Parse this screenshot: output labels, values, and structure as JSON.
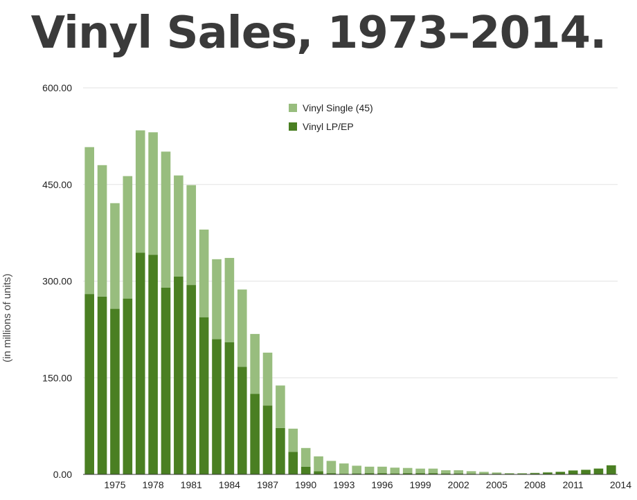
{
  "title": "Vinyl Sales, 1973–2014.",
  "chart_data": {
    "type": "bar",
    "stacked": true,
    "title": "Vinyl Sales, 1973–2014.",
    "xlabel": "",
    "ylabel": "(in millions of units)",
    "ylim": [
      0,
      600
    ],
    "yticks": [
      "0.00",
      "150.00",
      "300.00",
      "450.00",
      "600.00"
    ],
    "x": [
      1973,
      1974,
      1975,
      1976,
      1977,
      1978,
      1979,
      1980,
      1981,
      1982,
      1983,
      1984,
      1985,
      1986,
      1987,
      1988,
      1989,
      1990,
      1991,
      1992,
      1993,
      1994,
      1995,
      1996,
      1997,
      1998,
      1999,
      2000,
      2001,
      2002,
      2003,
      2004,
      2005,
      2006,
      2007,
      2008,
      2009,
      2010,
      2011,
      2012,
      2013,
      2014
    ],
    "x_tick_labels": [
      "1975",
      "1978",
      "1981",
      "1984",
      "1987",
      "1990",
      "1993",
      "1996",
      "1999",
      "2002",
      "2005",
      "2008",
      "2011",
      "2014"
    ],
    "grid": true,
    "legend_position": "top-center",
    "series": [
      {
        "name": "Vinyl LP/EP",
        "color": "#4a7f22",
        "values": [
          280,
          276,
          257,
          273,
          344,
          341,
          290,
          307,
          294,
          244,
          210,
          205,
          167,
          125,
          107,
          72,
          35,
          12,
          5,
          2,
          1,
          1.5,
          2,
          2,
          1.5,
          2,
          2,
          2,
          1.5,
          1.5,
          1,
          1,
          1,
          1,
          1,
          2,
          3,
          4,
          6,
          7,
          9,
          14
        ]
      },
      {
        "name": "Vinyl Single (45)",
        "color": "#98bd7e",
        "values": [
          228,
          204,
          164,
          190,
          190,
          190,
          211,
          157,
          155,
          136,
          124,
          131,
          120,
          93,
          82,
          66,
          36,
          29,
          23,
          19,
          16,
          12,
          10,
          10,
          9,
          8,
          7,
          7,
          5,
          5,
          4,
          3,
          2,
          1,
          1,
          0.5,
          0.5,
          0.3,
          0.3,
          0.3,
          0.3,
          0.3
        ]
      }
    ]
  }
}
